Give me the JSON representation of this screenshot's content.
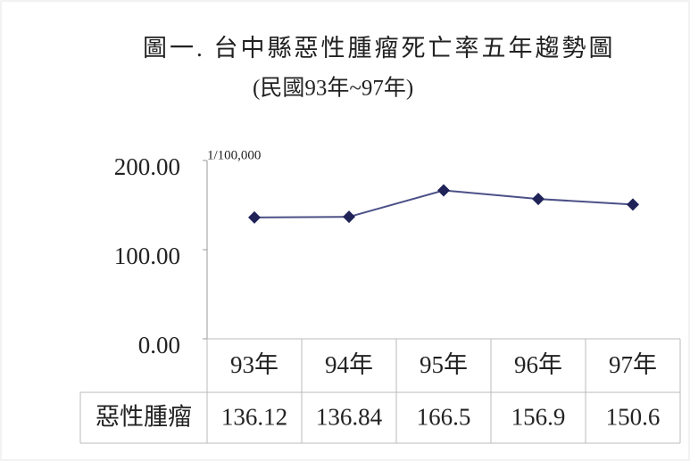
{
  "chart_data": {
    "type": "line",
    "title": "圖一.  台中縣惡性腫瘤死亡率五年趨勢圖",
    "subtitle": "(民國93年~97年)",
    "y_label": "1/100,000",
    "categories": [
      "93年",
      "94年",
      "95年",
      "96年",
      "97年"
    ],
    "series": [
      {
        "name": "惡性腫瘤",
        "color": "#4b5087",
        "values": [
          136.12,
          136.84,
          166.5,
          156.9,
          150.6
        ]
      }
    ],
    "ylim": [
      0,
      200
    ],
    "yticks": [
      {
        "value": 0,
        "label": "0.00"
      },
      {
        "value": 100,
        "label": "100.00"
      },
      {
        "value": 200,
        "label": "200.00"
      }
    ]
  }
}
